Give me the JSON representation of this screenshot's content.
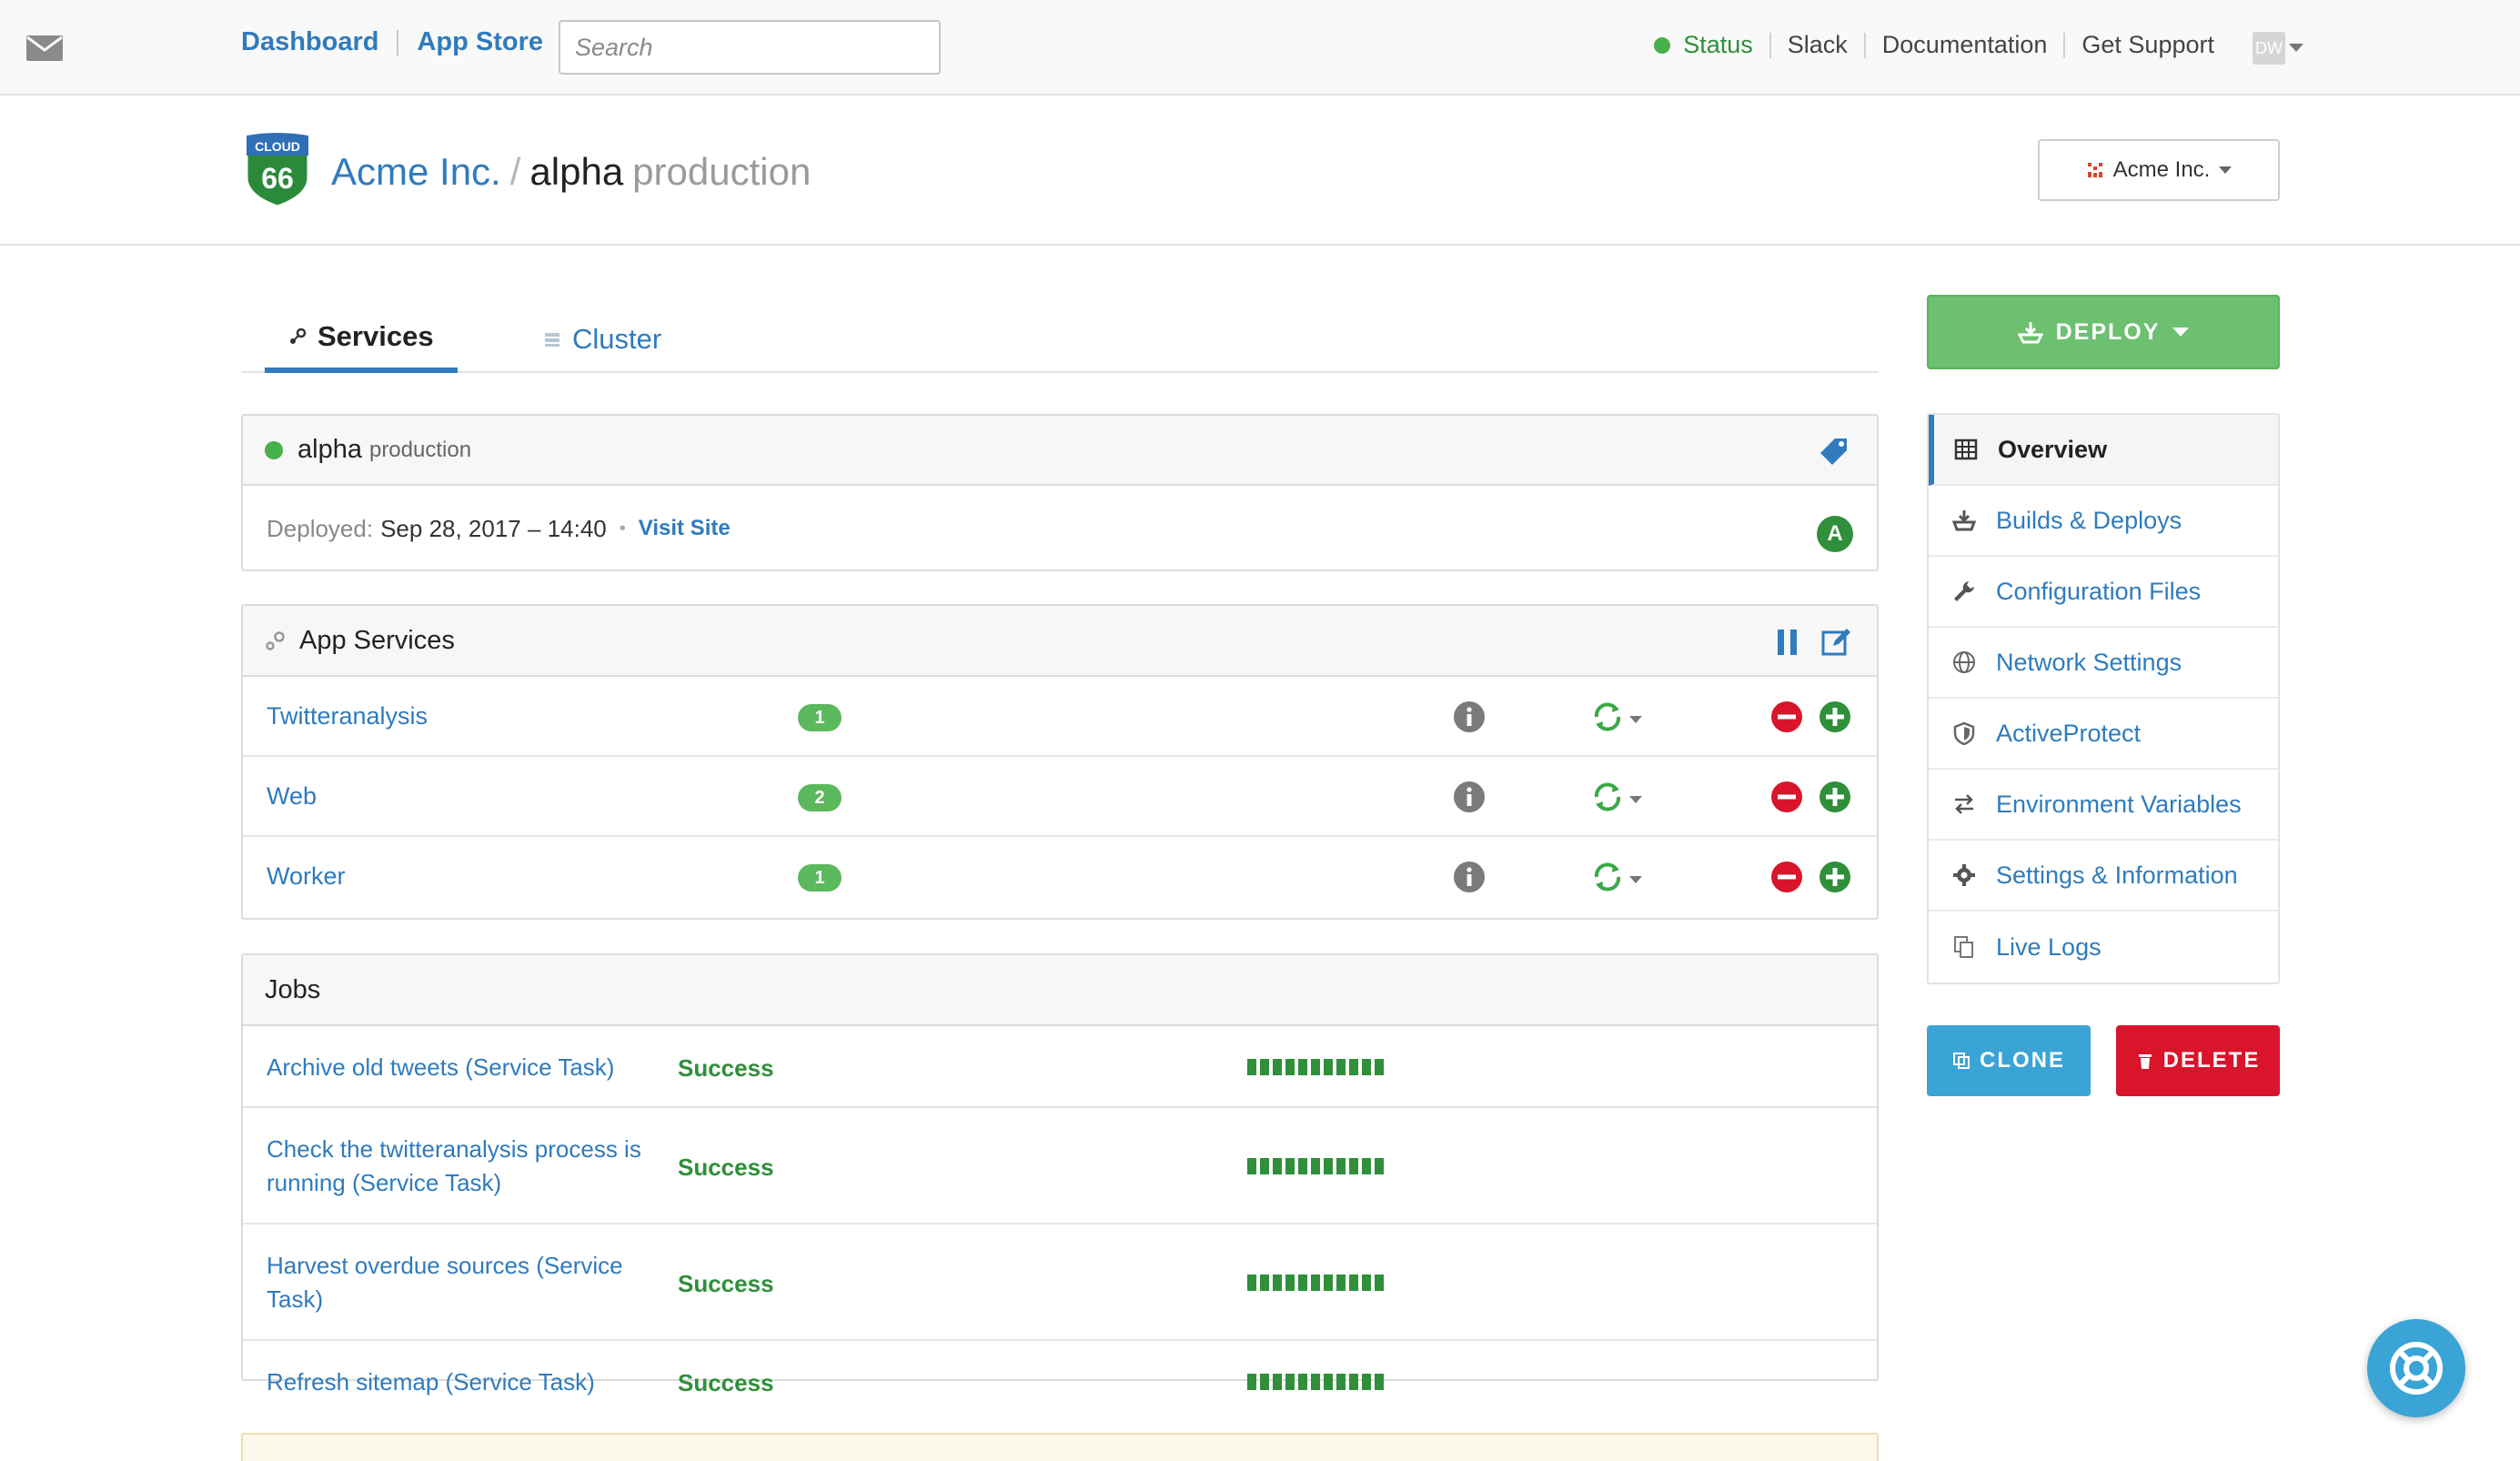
{
  "topnav": {
    "links": [
      "Dashboard",
      "App Store"
    ],
    "search_placeholder": "Search",
    "status_label": "Status",
    "right_links": [
      "Slack",
      "Documentation",
      "Get Support"
    ],
    "avatar_initials": "DW"
  },
  "header": {
    "logo_top": "CLOUD",
    "logo_num": "66",
    "org": "Acme Inc.",
    "stack": "alpha",
    "environment": "production",
    "org_switcher_label": "Acme Inc."
  },
  "tabs": [
    {
      "label": "Services",
      "active": true
    },
    {
      "label": "Cluster",
      "active": false
    }
  ],
  "stack_panel": {
    "name": "alpha",
    "environment": "production",
    "deployed_label": "Deployed:",
    "deployed_value": "Sep 28, 2017 – 14:40",
    "visit_label": "Visit Site",
    "badge": "A"
  },
  "app_services": {
    "title": "App Services",
    "rows": [
      {
        "name": "Twitteranalysis",
        "count": "1"
      },
      {
        "name": "Web",
        "count": "2"
      },
      {
        "name": "Worker",
        "count": "1"
      }
    ]
  },
  "jobs": {
    "title": "Jobs",
    "rows": [
      {
        "name": "Archive old tweets (Service Task)",
        "status": "Success"
      },
      {
        "name": "Check the twitteranalysis process is running (Service Task)",
        "status": "Success"
      },
      {
        "name": "Harvest overdue sources (Service Task)",
        "status": "Success"
      },
      {
        "name": "Refresh sitemap (Service Task)",
        "status": "Success"
      }
    ]
  },
  "sidebar": {
    "deploy_label": "DEPLOY",
    "items": [
      {
        "label": "Overview",
        "icon": "table-icon",
        "active": true
      },
      {
        "label": "Builds & Deploys",
        "icon": "deploy-icon",
        "active": false
      },
      {
        "label": "Configuration Files",
        "icon": "wrench-icon",
        "active": false
      },
      {
        "label": "Network Settings",
        "icon": "globe-icon",
        "active": false
      },
      {
        "label": "ActiveProtect",
        "icon": "shield-icon",
        "active": false
      },
      {
        "label": "Environment Variables",
        "icon": "exchange-icon",
        "active": false
      },
      {
        "label": "Settings & Information",
        "icon": "gear-icon",
        "active": false
      },
      {
        "label": "Live Logs",
        "icon": "copy-icon",
        "active": false
      }
    ],
    "clone_label": "CLONE",
    "delete_label": "DELETE"
  },
  "colors": {
    "link": "#2f7bbd",
    "success": "#2f8f3a",
    "deploy": "#6cc070",
    "clone": "#3aa4d6",
    "delete": "#d9142b"
  }
}
